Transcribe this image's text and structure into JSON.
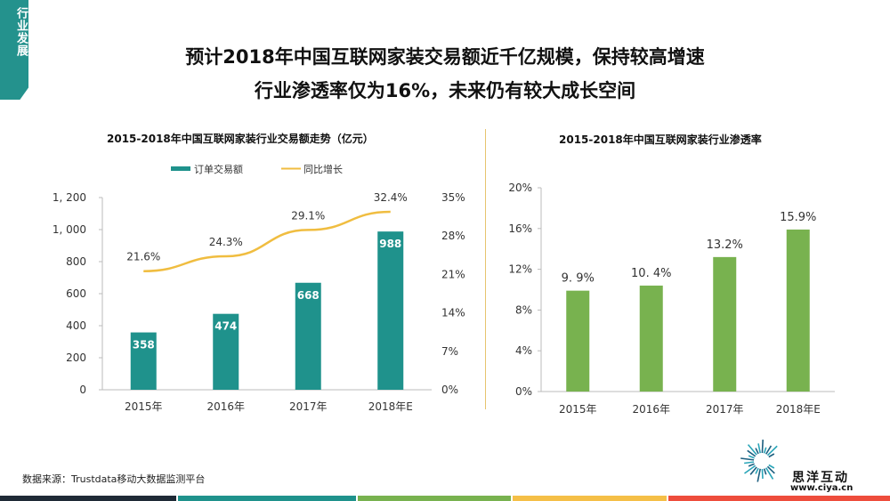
{
  "side_tab": {
    "label": "行业发展",
    "color": "#24928d"
  },
  "headline": {
    "line1": "预计2018年中国互联网家装交易额近千亿规模，保持较高增速",
    "line2": "行业渗透率仅为16%，未来仍有较大成长空间"
  },
  "chart_data": [
    {
      "type": "bar+line",
      "title": "2015-2018年中国互联网家装行业交易额走势（亿元）",
      "categories": [
        "2015年",
        "2016年",
        "2017年",
        "2018年E"
      ],
      "series": [
        {
          "name": "订单交易额",
          "type": "bar",
          "axis": "left",
          "values": [
            358,
            474,
            668,
            988
          ],
          "labels": [
            "358",
            "474",
            "668",
            "988"
          ],
          "color": "#1f928c"
        },
        {
          "name": "同比增长",
          "type": "line",
          "axis": "right",
          "values": [
            21.6,
            24.3,
            29.1,
            32.4
          ],
          "labels": [
            "21.6%",
            "24.3%",
            "29.1%",
            "32.4%"
          ],
          "color": "#f0bd40"
        }
      ],
      "y_left": {
        "range": [
          0,
          1200
        ],
        "ticks": [
          0,
          200,
          400,
          600,
          800,
          1000,
          1200
        ],
        "tick_labels": [
          "0",
          "200",
          "400",
          "600",
          "800",
          "1, 000",
          "1, 200"
        ]
      },
      "y_right": {
        "range": [
          0,
          35
        ],
        "ticks": [
          0,
          7,
          14,
          21,
          28,
          35
        ],
        "tick_labels": [
          "0%",
          "7%",
          "14%",
          "21%",
          "28%",
          "35%"
        ]
      },
      "legend": "top",
      "grid": false
    },
    {
      "type": "bar",
      "title": "2015-2018年中国互联网家装行业渗透率",
      "categories": [
        "2015年",
        "2016年",
        "2017年",
        "2018年E"
      ],
      "values": [
        9.9,
        10.4,
        13.2,
        15.9
      ],
      "labels": [
        "9. 9%",
        "10. 4%",
        "13.2%",
        "15.9%"
      ],
      "color": "#78b24f",
      "y": {
        "range": [
          0,
          20
        ],
        "ticks": [
          0,
          4,
          8,
          12,
          16,
          20
        ],
        "tick_labels": [
          "0%",
          "4%",
          "8%",
          "12%",
          "16%",
          "20%"
        ]
      },
      "grid": false
    }
  ],
  "source": "数据来源：Trustdata移动大数据监测平台",
  "brand": {
    "name": "思洋互动",
    "url": "www.ciya.cn"
  },
  "footer_colors": [
    "#1f2a36",
    "#1f928c",
    "#78b24f",
    "#f5bf47",
    "#ee4d3c"
  ]
}
